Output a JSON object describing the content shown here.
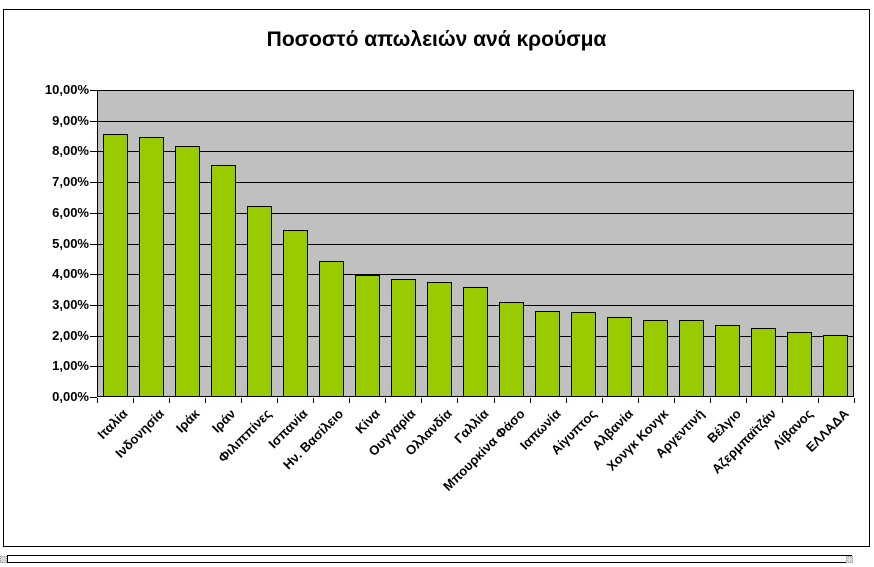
{
  "chart_data": {
    "type": "bar",
    "title": "Ποσοστό απωλειών ανά κρούσμα",
    "categories": [
      "Ιταλία",
      "Ινδονησία",
      "Ιράκ",
      "Ιράν",
      "Φιλιππίνες",
      "Ισπανία",
      "Ην. Βασίλειο",
      "Κίνα",
      "Ουγγαρία",
      "Ολλανδία",
      "Γαλλία",
      "Μπουρκίνα Φάσο",
      "Ιαπωνία",
      "Αίγυπτος",
      "Αλβανία",
      "Χονγκ Κονγκ",
      "Αργεντινή",
      "Βέλγιο",
      "Αζερμπαϊτζάν",
      "Λίβανος",
      "ΕΛΛΑΔΑ"
    ],
    "values": [
      8.57,
      8.48,
      8.19,
      7.56,
      6.21,
      5.43,
      4.42,
      3.98,
      3.85,
      3.74,
      3.57,
      3.1,
      2.8,
      2.78,
      2.62,
      2.52,
      2.51,
      2.35,
      2.25,
      2.11,
      2.01
    ],
    "ylabel": "",
    "xlabel": "",
    "ylim": [
      0,
      10
    ],
    "ytick_step": 1,
    "ytick_labels": [
      "0,00%",
      "1,00%",
      "2,00%",
      "3,00%",
      "4,00%",
      "5,00%",
      "6,00%",
      "7,00%",
      "8,00%",
      "9,00%",
      "10,00%"
    ],
    "grid": true,
    "legend": "none",
    "colors": {
      "bar_fill": "#99CC00",
      "bar_border": "#000000",
      "plot_background": "#C0C0C0",
      "gridline": "#000000",
      "text": "#000000",
      "chart_border": "#000000"
    }
  }
}
